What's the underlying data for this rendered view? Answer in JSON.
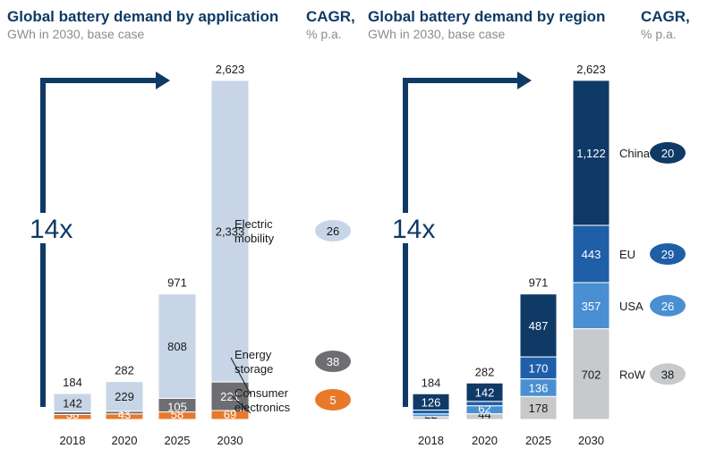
{
  "chart_data": [
    {
      "type": "bar",
      "stacked": true,
      "title": "Global battery demand by application",
      "subtitle": "GWh in 2030, base case",
      "cagr_header": [
        "CAGR,",
        "% p.a."
      ],
      "categories": [
        "2018",
        "2020",
        "2025",
        "2030"
      ],
      "totals": [
        184,
        282,
        971,
        2623
      ],
      "multiplier_label": "14x",
      "series": [
        {
          "name": "Consumer electronics",
          "label_lines": [
            "Consumer",
            "electronics"
          ],
          "values": [
            38,
            43,
            58,
            69
          ],
          "color": "#e8792b",
          "cagr": "5",
          "badge_color": "#e8792b",
          "badge_text_color": "#ffffff"
        },
        {
          "name": "Energy storage",
          "label_lines": [
            "Energy",
            "storage"
          ],
          "values": [
            4,
            10,
            105,
            221
          ],
          "color": "#6d6e71",
          "cagr": "38",
          "badge_color": "#6d6e71",
          "badge_text_color": "#ffffff"
        },
        {
          "name": "Electric mobility",
          "label_lines": [
            "Electric",
            "mobility"
          ],
          "values": [
            142,
            229,
            808,
            2333
          ],
          "color": "#c7d5e6",
          "cagr": "26",
          "badge_color": "#c7d5e6",
          "badge_text_color": "#1a1a1a"
        }
      ],
      "segment_labels": [
        [
          "38",
          "",
          "142"
        ],
        [
          "43",
          "10",
          "229"
        ],
        [
          "58",
          "105",
          "808"
        ],
        [
          "69",
          "221",
          "2,333"
        ]
      ],
      "total_labels": [
        "184",
        "282",
        "971",
        "2,623"
      ]
    },
    {
      "type": "bar",
      "stacked": true,
      "title": "Global battery demand by region",
      "subtitle": "GWh in 2030, base case",
      "cagr_header": [
        "CAGR,",
        "% p.a."
      ],
      "categories": [
        "2018",
        "2020",
        "2025",
        "2030"
      ],
      "totals": [
        184,
        282,
        971,
        2623
      ],
      "multiplier_label": "14x",
      "series": [
        {
          "name": "RoW",
          "values": [
            22,
            44,
            178,
            702
          ],
          "color": "#c8c9cb",
          "cagr": "38",
          "badge_color": "#c8c9cb",
          "badge_text_color": "#1a1a1a"
        },
        {
          "name": "USA",
          "values": [
            6,
            62,
            136,
            357
          ],
          "color": "#4a8fd1",
          "cagr": "26",
          "badge_color": "#4a8fd1",
          "badge_text_color": "#ffffff"
        },
        {
          "name": "EU",
          "values": [
            30,
            34,
            170,
            443
          ],
          "color": "#1f5fa8",
          "cagr": "29",
          "badge_color": "#1f5fa8",
          "badge_text_color": "#ffffff"
        },
        {
          "name": "China",
          "values": [
            126,
            142,
            487,
            1122
          ],
          "color": "#0f3a66",
          "cagr": "20",
          "badge_color": "#0f3a66",
          "badge_text_color": "#ffffff"
        }
      ],
      "segment_labels": [
        [
          "22",
          "",
          "",
          "126"
        ],
        [
          "44",
          "62",
          "",
          "142"
        ],
        [
          "178",
          "136",
          "170",
          "487"
        ],
        [
          "702",
          "357",
          "443",
          "1,122"
        ]
      ],
      "total_labels": [
        "184",
        "282",
        "971",
        "2,623"
      ]
    }
  ]
}
